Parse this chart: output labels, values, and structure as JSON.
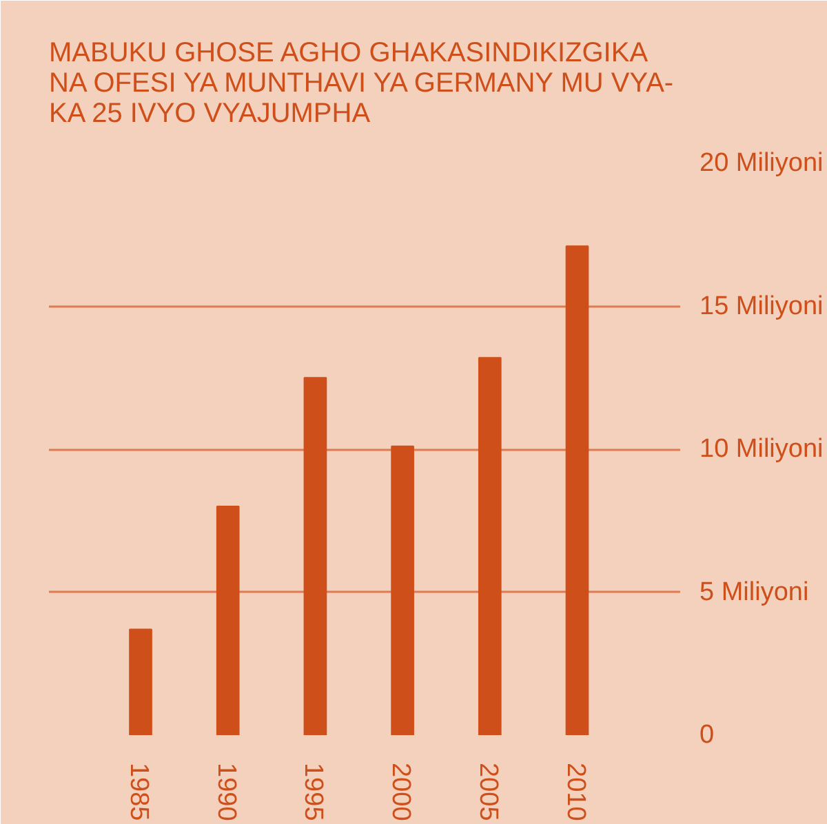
{
  "chart_data": {
    "type": "bar",
    "title": "MABUKU GHOSE AGHO GHAKASINDIKIZGIKA\nNA OFESI YA MUNTHAVI YA GERMANY MU VYA-\nKA 25 IVYO VYAJUMPHA",
    "categories": [
      "1985",
      "1990",
      "1995",
      "2000",
      "2005",
      "2010"
    ],
    "values": [
      3.7,
      8.0,
      12.5,
      10.1,
      13.2,
      17.1
    ],
    "color": "#cf4f1b",
    "ylim": [
      0,
      20
    ],
    "yticks": [
      {
        "value": 0,
        "label": "0"
      },
      {
        "value": 5,
        "label": "5 Miliyoni"
      },
      {
        "value": 10,
        "label": "10 Miliyoni"
      },
      {
        "value": 15,
        "label": "15 Miliyoni"
      },
      {
        "value": 20,
        "label": "20 Miliyoni"
      }
    ],
    "grid": "y"
  }
}
